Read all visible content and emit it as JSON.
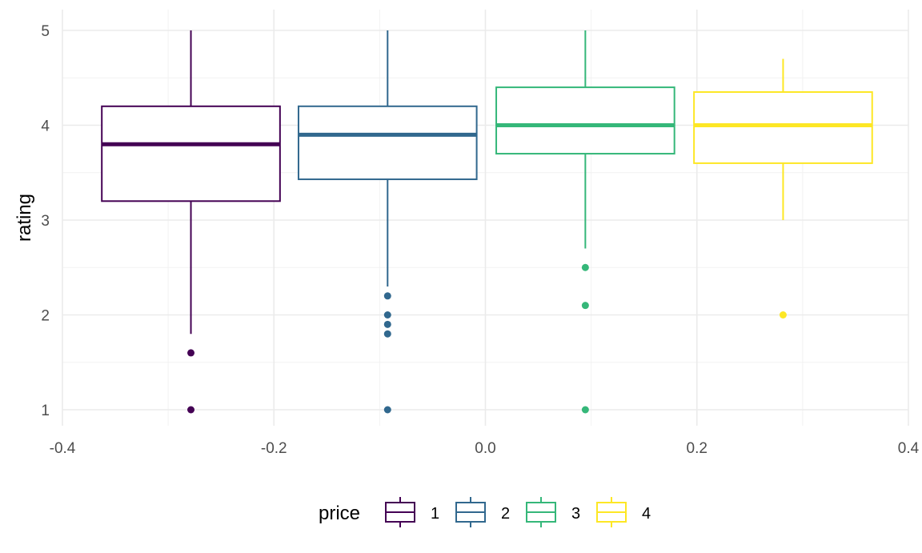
{
  "chart_data": {
    "type": "boxplot",
    "xlabel": "",
    "ylabel": "rating",
    "xlim": [
      -0.4,
      0.4
    ],
    "ylim": [
      1,
      5
    ],
    "x_ticks": [
      "-0.4",
      "-0.2",
      "0.0",
      "0.2",
      "0.4"
    ],
    "y_ticks": [
      "1",
      "2",
      "3",
      "4",
      "5"
    ],
    "grid": true,
    "legend": {
      "title": "price",
      "position": "bottom",
      "entries": [
        "1",
        "2",
        "3",
        "4"
      ]
    },
    "series": [
      {
        "name": "1",
        "color": "#440154",
        "x_center": -0.2785,
        "box_width": 0.1685,
        "whisker_low": 1.8,
        "q1": 3.2,
        "median": 3.8,
        "q3": 4.2,
        "whisker_high": 5.0,
        "outliers": [
          1.6,
          1.0
        ]
      },
      {
        "name": "2",
        "color": "#31688E",
        "x_center": -0.0925,
        "box_width": 0.1685,
        "whisker_low": 2.3,
        "q1": 3.43,
        "median": 3.9,
        "q3": 4.2,
        "whisker_high": 5.0,
        "outliers": [
          2.2,
          2.0,
          1.9,
          1.8,
          1.0
        ]
      },
      {
        "name": "3",
        "color": "#35B779",
        "x_center": 0.0945,
        "box_width": 0.1685,
        "whisker_low": 2.7,
        "q1": 3.7,
        "median": 4.0,
        "q3": 4.4,
        "whisker_high": 5.0,
        "outliers": [
          2.5,
          2.1,
          1.0
        ]
      },
      {
        "name": "4",
        "color": "#FDE725",
        "x_center": 0.2815,
        "box_width": 0.1685,
        "whisker_low": 3.0,
        "q1": 3.6,
        "median": 4.0,
        "q3": 4.35,
        "whisker_high": 4.7,
        "outliers": [
          2.0
        ]
      }
    ]
  }
}
